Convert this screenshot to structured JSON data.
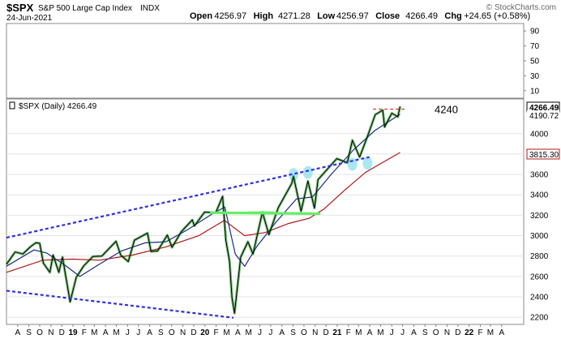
{
  "header": {
    "symbol": "$SPX",
    "name": "S&P 500 Large Cap Index",
    "exchange": "INDX",
    "date": "24-Jun-2021",
    "watermark": "© StockCharts.com",
    "ohlc": [
      {
        "label": "Open",
        "value": "4256.97"
      },
      {
        "label": "High",
        "value": "4271.28"
      },
      {
        "label": "Low",
        "value": "4256.97"
      },
      {
        "label": "Close",
        "value": "4266.49"
      },
      {
        "label": "Chg",
        "value": "+24.65 (+0.58%)"
      }
    ]
  },
  "colors": {
    "price": "#000000",
    "up": "#0a8a0a",
    "ma_short": "#1a2a8a",
    "ma_long": "#b01818",
    "trendline": "#3030e0",
    "support": "#66ee66",
    "highlight": "#88ddee",
    "resistance": "#cc1010",
    "badge_price": "#000000",
    "badge_ma": "#b01818"
  },
  "chart_data": {
    "type": "line",
    "title": "$SPX (Daily) 4266.49",
    "upper_panel": {
      "ylim": [
        0,
        100
      ],
      "ticks": [
        "10",
        "30",
        "50",
        "70",
        "90"
      ]
    },
    "y_ticks": [
      2200,
      2400,
      2600,
      2800,
      3000,
      3200,
      3400,
      3600,
      3800,
      4000
    ],
    "ylim": [
      2130,
      4340
    ],
    "xlim": [
      "2018-07-01",
      "2022-06-01"
    ],
    "x_ticks": [
      {
        "d": "2018-08-01",
        "label": "A"
      },
      {
        "d": "2018-09-01",
        "label": "S"
      },
      {
        "d": "2018-10-01",
        "label": "O"
      },
      {
        "d": "2018-11-01",
        "label": "N"
      },
      {
        "d": "2018-12-01",
        "label": "D"
      },
      {
        "d": "2019-01-01",
        "label": "19",
        "bold": true
      },
      {
        "d": "2019-02-01",
        "label": "F"
      },
      {
        "d": "2019-03-01",
        "label": "M"
      },
      {
        "d": "2019-04-01",
        "label": "A"
      },
      {
        "d": "2019-05-01",
        "label": "M"
      },
      {
        "d": "2019-06-01",
        "label": "J"
      },
      {
        "d": "2019-07-01",
        "label": "J"
      },
      {
        "d": "2019-08-01",
        "label": "A"
      },
      {
        "d": "2019-09-01",
        "label": "S"
      },
      {
        "d": "2019-10-01",
        "label": "O"
      },
      {
        "d": "2019-11-01",
        "label": "N"
      },
      {
        "d": "2019-12-01",
        "label": "D"
      },
      {
        "d": "2020-01-01",
        "label": "20",
        "bold": true
      },
      {
        "d": "2020-02-01",
        "label": "F"
      },
      {
        "d": "2020-03-01",
        "label": "M"
      },
      {
        "d": "2020-04-01",
        "label": "A"
      },
      {
        "d": "2020-05-01",
        "label": "M"
      },
      {
        "d": "2020-06-01",
        "label": "J"
      },
      {
        "d": "2020-07-01",
        "label": "J"
      },
      {
        "d": "2020-08-01",
        "label": "A"
      },
      {
        "d": "2020-09-01",
        "label": "S"
      },
      {
        "d": "2020-10-01",
        "label": "O"
      },
      {
        "d": "2020-11-01",
        "label": "N"
      },
      {
        "d": "2020-12-01",
        "label": "D"
      },
      {
        "d": "2021-01-01",
        "label": "21",
        "bold": true
      },
      {
        "d": "2021-02-01",
        "label": "F"
      },
      {
        "d": "2021-03-01",
        "label": "M"
      },
      {
        "d": "2021-04-01",
        "label": "A"
      },
      {
        "d": "2021-05-01",
        "label": "M"
      },
      {
        "d": "2021-06-01",
        "label": "J"
      },
      {
        "d": "2021-07-01",
        "label": "J"
      },
      {
        "d": "2021-08-01",
        "label": "A"
      },
      {
        "d": "2021-09-01",
        "label": "S"
      },
      {
        "d": "2021-10-01",
        "label": "O"
      },
      {
        "d": "2021-11-01",
        "label": "N"
      },
      {
        "d": "2021-12-01",
        "label": "D"
      },
      {
        "d": "2022-01-01",
        "label": "22",
        "bold": true
      },
      {
        "d": "2022-02-01",
        "label": "F"
      },
      {
        "d": "2022-03-01",
        "label": "M"
      },
      {
        "d": "2022-04-01",
        "label": "A"
      }
    ],
    "badges": [
      {
        "value": "4266.49",
        "y": 4266.49,
        "style": "price"
      },
      {
        "value": "4190.72",
        "y": 4190.72,
        "style": "plain"
      },
      {
        "value": "3815.30",
        "y": 3815.3,
        "style": "ma"
      }
    ],
    "annotation": {
      "text": "4240",
      "y": 4240
    },
    "series": [
      {
        "role": "price",
        "points": [
          [
            "2018-07-01",
            2720
          ],
          [
            "2018-07-25",
            2840
          ],
          [
            "2018-08-15",
            2820
          ],
          [
            "2018-09-05",
            2890
          ],
          [
            "2018-09-20",
            2930
          ],
          [
            "2018-10-01",
            2925
          ],
          [
            "2018-10-11",
            2730
          ],
          [
            "2018-10-29",
            2640
          ],
          [
            "2018-11-07",
            2810
          ],
          [
            "2018-11-23",
            2640
          ],
          [
            "2018-12-03",
            2790
          ],
          [
            "2018-12-24",
            2350
          ],
          [
            "2019-01-10",
            2590
          ],
          [
            "2019-01-31",
            2705
          ],
          [
            "2019-02-25",
            2795
          ],
          [
            "2019-03-22",
            2800
          ],
          [
            "2019-04-30",
            2945
          ],
          [
            "2019-05-13",
            2810
          ],
          [
            "2019-06-03",
            2745
          ],
          [
            "2019-06-20",
            2955
          ],
          [
            "2019-07-26",
            3025
          ],
          [
            "2019-08-05",
            2845
          ],
          [
            "2019-08-23",
            2850
          ],
          [
            "2019-09-19",
            3005
          ],
          [
            "2019-10-02",
            2885
          ],
          [
            "2019-10-28",
            3040
          ],
          [
            "2019-11-27",
            3155
          ],
          [
            "2019-12-03",
            3095
          ],
          [
            "2019-12-31",
            3230
          ],
          [
            "2020-01-31",
            3225
          ],
          [
            "2020-02-19",
            3385
          ],
          [
            "2020-02-28",
            2955
          ],
          [
            "2020-03-09",
            2750
          ],
          [
            "2020-03-16",
            2390
          ],
          [
            "2020-03-23",
            2240
          ],
          [
            "2020-04-09",
            2790
          ],
          [
            "2020-04-29",
            2940
          ],
          [
            "2020-05-13",
            2820
          ],
          [
            "2020-06-08",
            3230
          ],
          [
            "2020-06-26",
            3010
          ],
          [
            "2020-07-22",
            3275
          ],
          [
            "2020-08-28",
            3510
          ],
          [
            "2020-09-02",
            3580
          ],
          [
            "2020-09-23",
            3240
          ],
          [
            "2020-10-12",
            3535
          ],
          [
            "2020-10-30",
            3270
          ],
          [
            "2020-11-09",
            3550
          ],
          [
            "2020-12-31",
            3755
          ],
          [
            "2021-01-29",
            3715
          ],
          [
            "2021-02-12",
            3935
          ],
          [
            "2021-03-04",
            3770
          ],
          [
            "2021-03-26",
            3975
          ],
          [
            "2021-04-16",
            4185
          ],
          [
            "2021-05-07",
            4230
          ],
          [
            "2021-05-12",
            4065
          ],
          [
            "2021-06-01",
            4200
          ],
          [
            "2021-06-18",
            4165
          ],
          [
            "2021-06-24",
            4266
          ]
        ]
      },
      {
        "role": "ma_short",
        "points": [
          [
            "2018-07-01",
            2700
          ],
          [
            "2018-09-15",
            2860
          ],
          [
            "2018-10-20",
            2830
          ],
          [
            "2018-12-10",
            2710
          ],
          [
            "2019-01-20",
            2600
          ],
          [
            "2019-03-15",
            2720
          ],
          [
            "2019-05-15",
            2850
          ],
          [
            "2019-07-20",
            2930
          ],
          [
            "2019-09-15",
            2940
          ],
          [
            "2019-11-15",
            3060
          ],
          [
            "2020-01-20",
            3210
          ],
          [
            "2020-02-25",
            3280
          ],
          [
            "2020-03-25",
            2820
          ],
          [
            "2020-04-20",
            2700
          ],
          [
            "2020-05-25",
            2900
          ],
          [
            "2020-07-15",
            3130
          ],
          [
            "2020-09-10",
            3360
          ],
          [
            "2020-10-25",
            3380
          ],
          [
            "2020-12-15",
            3600
          ],
          [
            "2021-02-15",
            3840
          ],
          [
            "2021-04-15",
            4030
          ],
          [
            "2021-06-24",
            4190
          ]
        ]
      },
      {
        "role": "ma_long",
        "points": [
          [
            "2018-07-01",
            2640
          ],
          [
            "2018-10-10",
            2760
          ],
          [
            "2018-12-31",
            2770
          ],
          [
            "2019-03-15",
            2760
          ],
          [
            "2019-06-15",
            2810
          ],
          [
            "2019-09-15",
            2890
          ],
          [
            "2019-12-15",
            3000
          ],
          [
            "2020-02-24",
            3150
          ],
          [
            "2020-04-20",
            3000
          ],
          [
            "2020-06-15",
            3030
          ],
          [
            "2020-08-20",
            3120
          ],
          [
            "2020-10-15",
            3170
          ],
          [
            "2020-11-25",
            3260
          ],
          [
            "2021-01-20",
            3440
          ],
          [
            "2021-03-20",
            3620
          ],
          [
            "2021-06-24",
            3815
          ]
        ]
      }
    ],
    "trendlines": [
      {
        "kind": "dashed",
        "from": [
          "2018-07-01",
          2980
        ],
        "to": [
          "2021-03-31",
          3770
        ]
      },
      {
        "kind": "dashed",
        "from": [
          "2018-07-01",
          2460
        ],
        "to": [
          "2020-03-20",
          2195
        ]
      },
      {
        "kind": "support",
        "from": [
          "2020-01-15",
          3225
        ],
        "to": [
          "2020-11-15",
          3215
        ]
      },
      {
        "kind": "support",
        "from": [
          "2020-05-01",
          3225
        ],
        "to": [
          "2020-07-10",
          3225
        ]
      },
      {
        "kind": "resistance",
        "from": [
          "2021-04-10",
          4240
        ],
        "to": [
          "2021-07-10",
          4240
        ]
      }
    ],
    "highlights": [
      {
        "d": "2020-09-02",
        "y": 3600
      },
      {
        "d": "2020-10-12",
        "y": 3620
      },
      {
        "d": "2021-02-12",
        "y": 3700
      },
      {
        "d": "2021-03-26",
        "y": 3710
      }
    ]
  }
}
